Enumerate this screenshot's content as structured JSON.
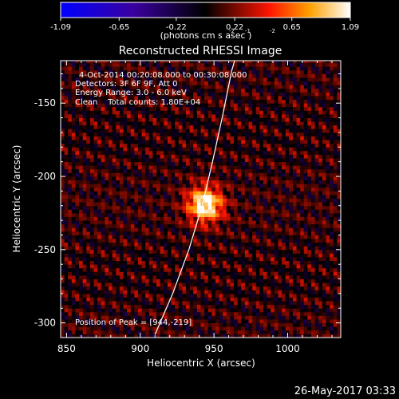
{
  "chart_data": {
    "type": "heatmap",
    "title": "Reconstructed RHESSI Image",
    "xlabel": "Heliocentric X (arcsec)",
    "ylabel": "Heliocentric Y (arcsec)",
    "xlim": [
      846,
      1036
    ],
    "ylim": [
      -310,
      -121
    ],
    "xticks": [
      850,
      900,
      950,
      1000
    ],
    "yticks": [
      -150,
      -200,
      -250,
      -300
    ],
    "colorbar": {
      "min": -1.09,
      "max": 1.09,
      "tick_values": [
        -1.09,
        -0.65,
        -0.22,
        0.22,
        0.65,
        1.09
      ],
      "tick_labels": [
        "-1.09",
        "-0.65",
        "-0.22",
        "0.22",
        "0.65",
        "1.09"
      ],
      "unit_label": "(photons cm  s  asec )",
      "unit_exponents": [
        "-2",
        "-1",
        "-2"
      ],
      "colormap": "RHESSI red temperature",
      "colors": [
        "#0000ff",
        "#000000",
        "#ff0000",
        "#ffaa00",
        "#ffffff"
      ]
    },
    "annotations": [
      "4-Oct-2014 00:20:08.000 to 00:30:08.000",
      "Detectors: 3F 6F 9F, Att 0",
      "Energy Range: 3.0 - 6.0 keV",
      "Clean    Total counts: 1.80E+04"
    ],
    "peak": {
      "label": "Position of Peak = [944,-219]",
      "x": 944,
      "y": -219,
      "value": 1.09
    },
    "limb_curve": [
      [
        910,
        -308
      ],
      [
        922,
        -280
      ],
      [
        933,
        -250
      ],
      [
        942,
        -220
      ],
      [
        949,
        -190
      ],
      [
        956,
        -158
      ],
      [
        962,
        -128
      ],
      [
        964,
        -121
      ]
    ],
    "grid": false,
    "legend": "none"
  },
  "footer": {
    "timestamp": "26-May-2017 03:33"
  }
}
